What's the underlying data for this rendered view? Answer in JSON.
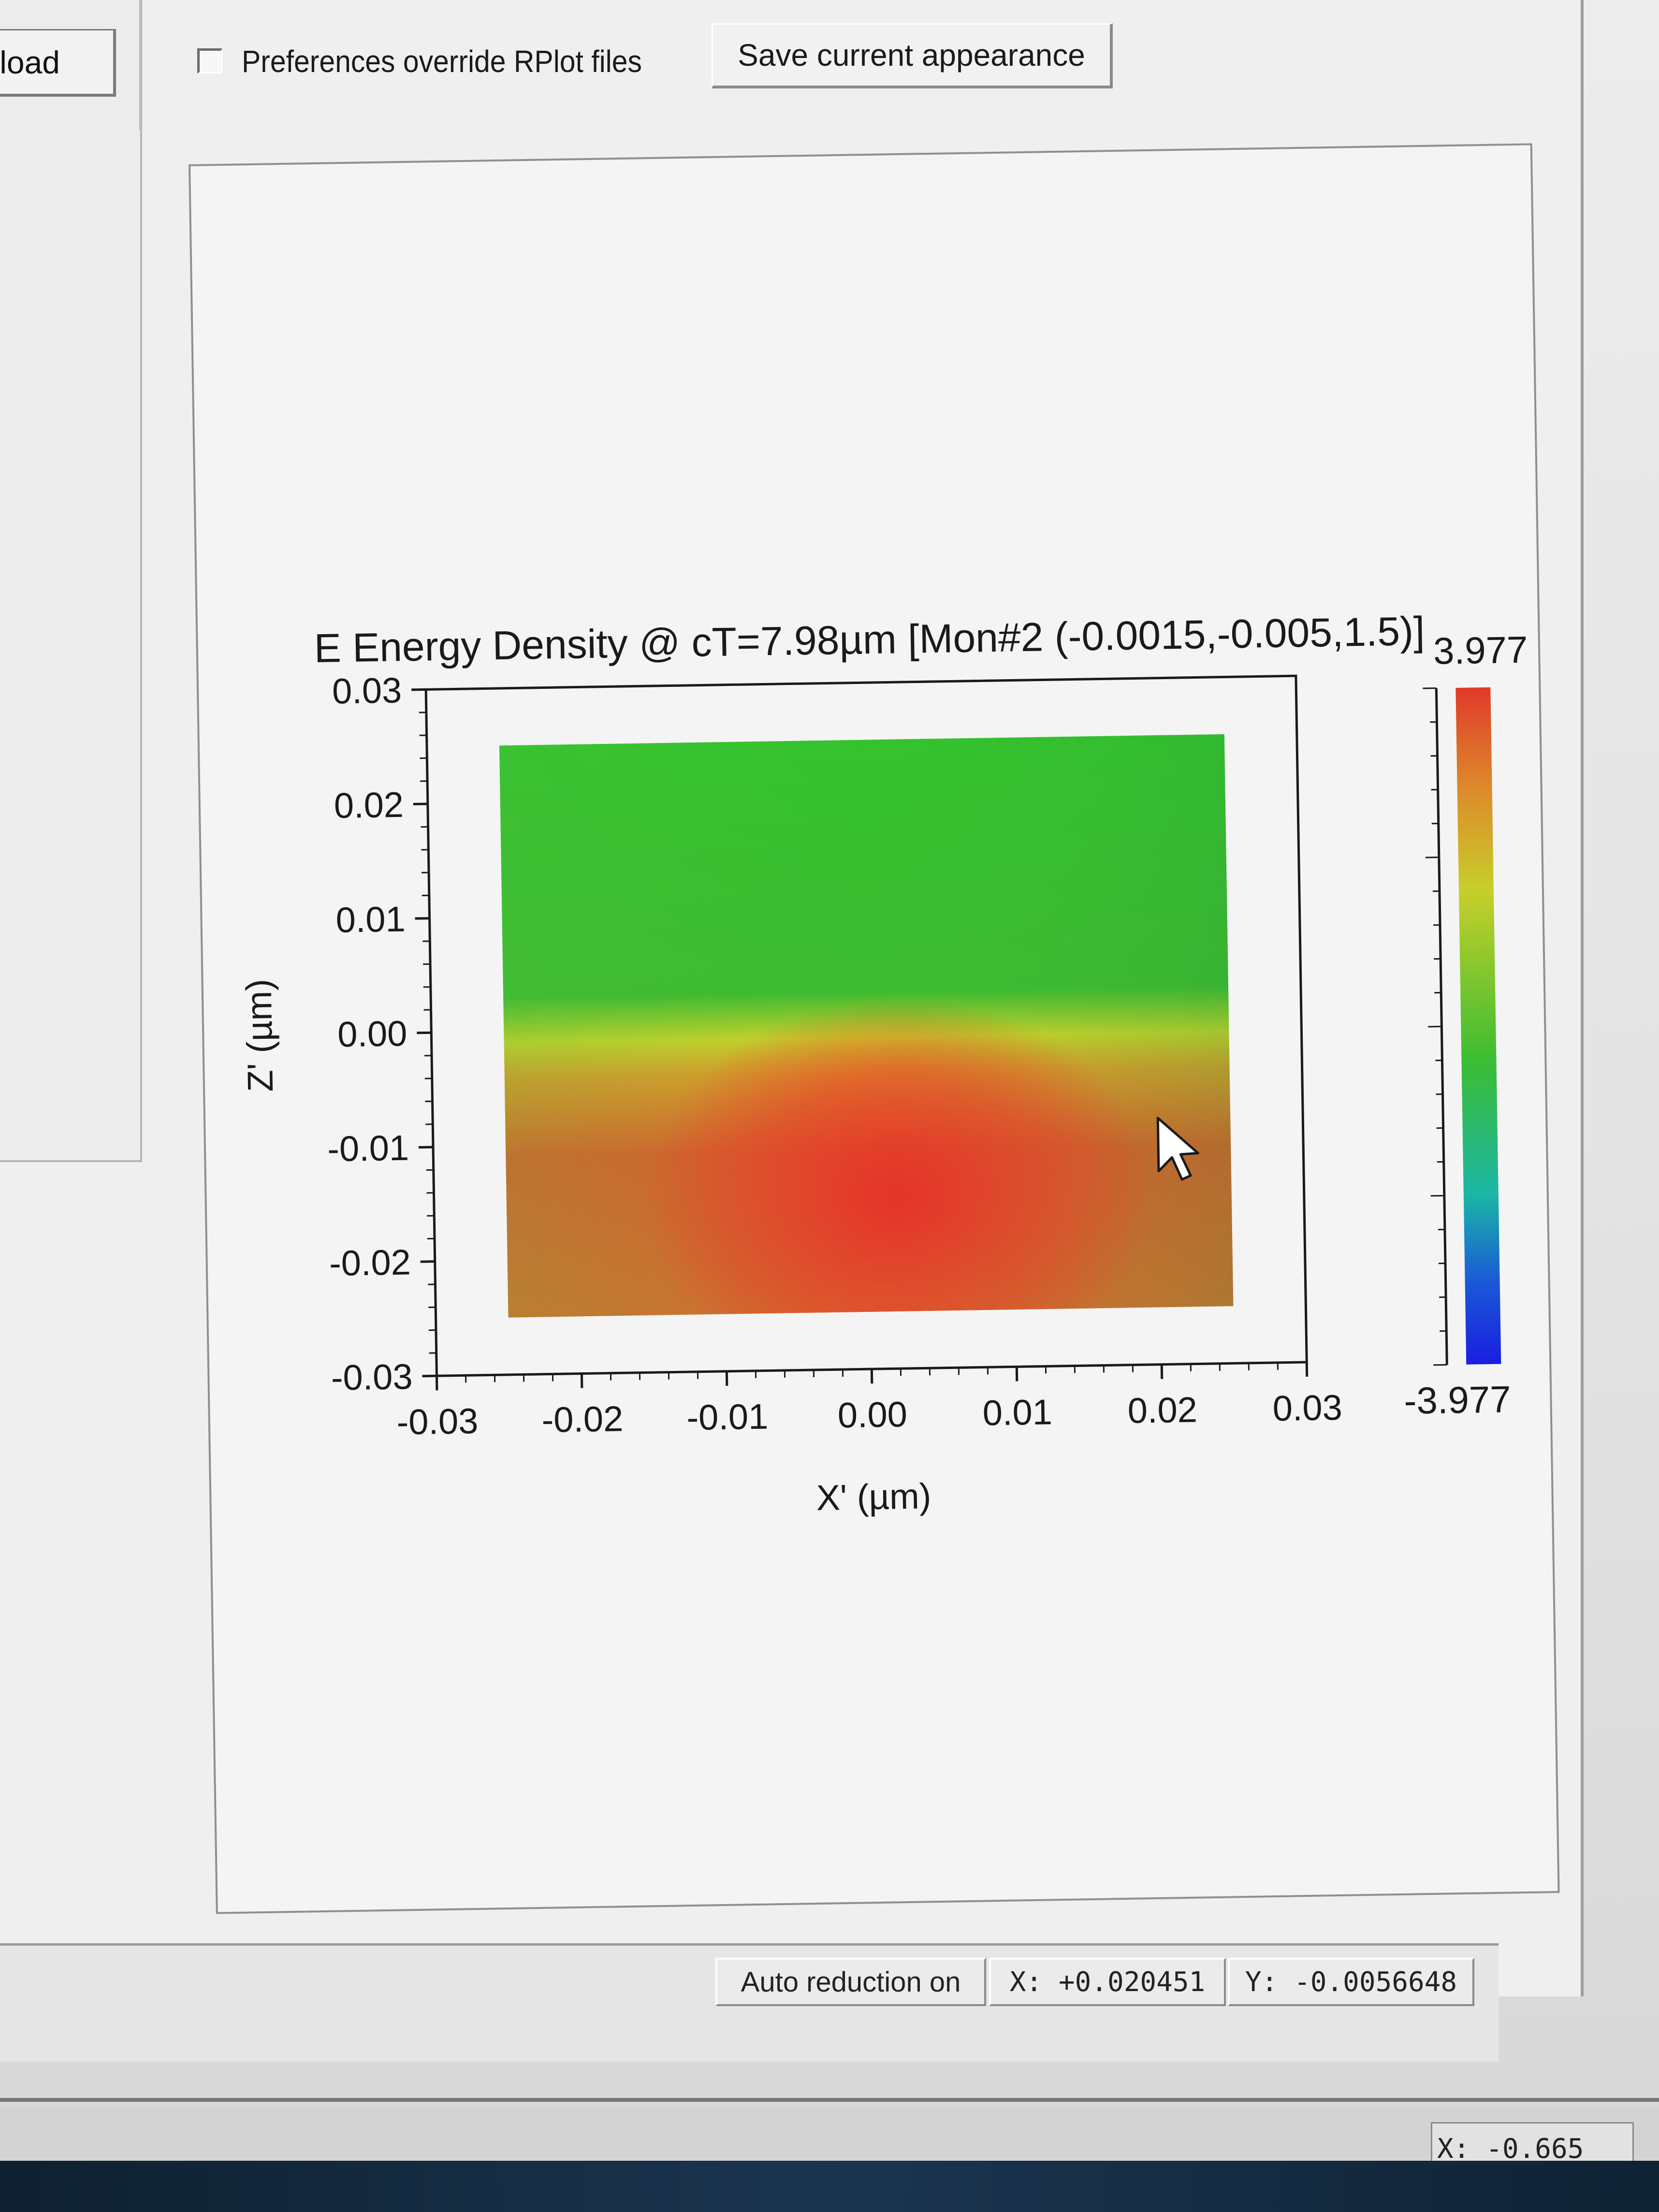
{
  "toolbar": {
    "reload_label": "eload",
    "prefs_checkbox_label": "Preferences override RPlot files",
    "prefs_checked": false,
    "save_label": "Save current appearance"
  },
  "chart_data": {
    "type": "heatmap",
    "title": "E Energy Density @ cT=7.98µm [Mon#2 (-0.0015,-0.005,1.5)]",
    "xlabel": "X' (µm)",
    "ylabel": "Z' (µm)",
    "xlim": [
      -0.03,
      0.03
    ],
    "ylim": [
      -0.03,
      0.03
    ],
    "x_ticks": [
      "-0.03",
      "-0.02",
      "-0.01",
      "0.00",
      "0.01",
      "0.02",
      "0.03"
    ],
    "y_ticks": [
      "0.03",
      "0.02",
      "0.01",
      "0.00",
      "-0.01",
      "-0.02",
      "-0.03"
    ],
    "data_extent": {
      "x": [
        -0.025,
        0.025
      ],
      "y": [
        -0.025,
        0.025
      ]
    },
    "colorbar": {
      "max_label": "3.977",
      "min_label": "-3.977",
      "max": 3.977,
      "min": -3.977
    },
    "colors": {
      "high": "#e03a2a",
      "mid_high": "#d9792a",
      "yellow": "#d6d02a",
      "green": "#3bbd2f",
      "cyan": "#1bb6a6",
      "blue": "#1a2fe0"
    }
  },
  "status": {
    "auto_reduction": "Auto reduction on",
    "x_readout": "X: +0.020451",
    "y_readout": "Y: -0.0056648",
    "outer_x_readout": "X: -0.665"
  },
  "icons": {
    "cursor": "mouse-pointer-icon"
  }
}
